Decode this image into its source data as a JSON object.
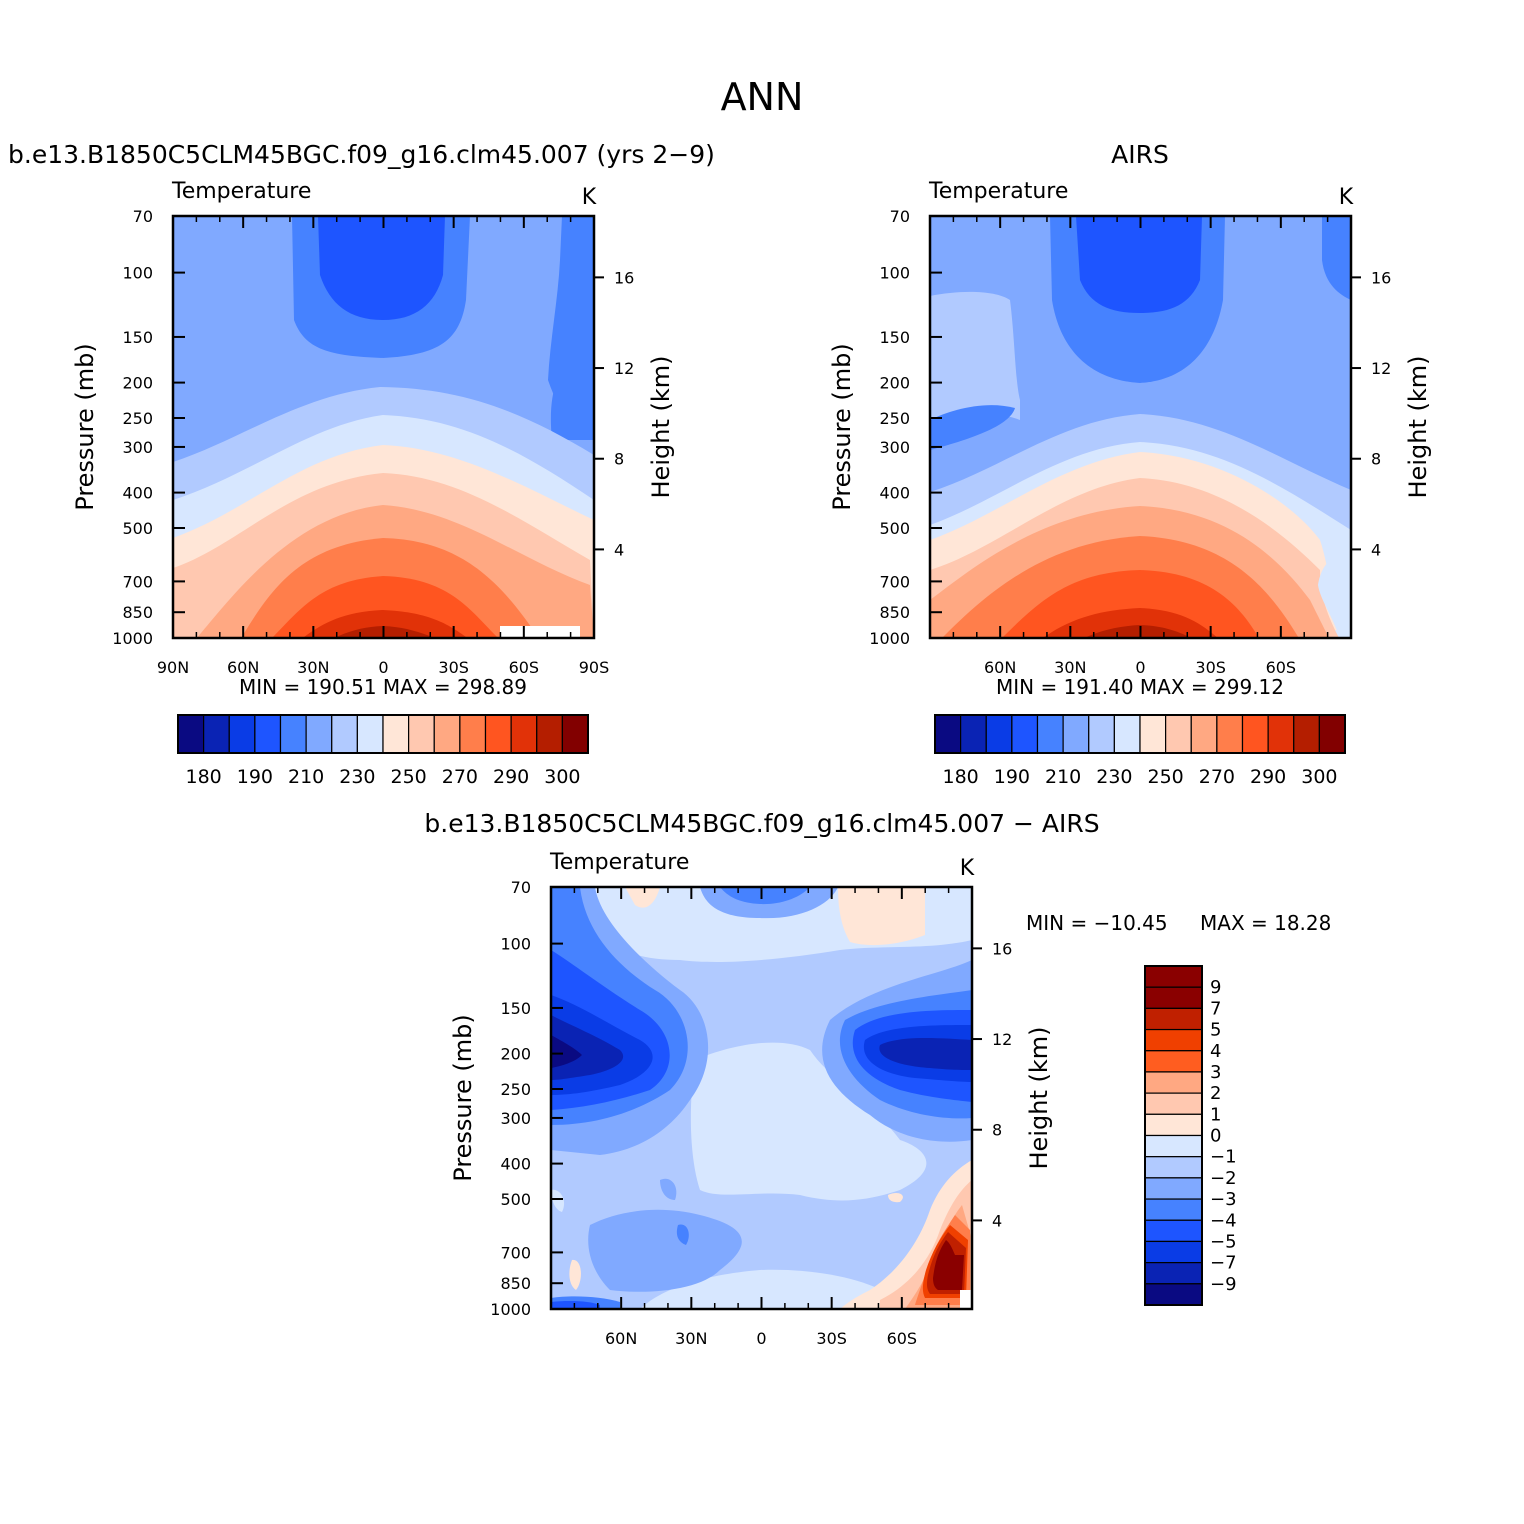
{
  "page": {
    "title": "ANN"
  },
  "chart_data": [
    {
      "type": "heatmap",
      "title": "b.e13.B1850C5CLM45BGC.f09_g16.clm45.007 (yrs 2−9)",
      "variable": "Temperature",
      "units": "K",
      "ylabel": "Pressure (mb)",
      "ylabel_right": "Height (km)",
      "x_ticks": [
        "90N",
        "60N",
        "30N",
        "0",
        "30S",
        "60S",
        "90S"
      ],
      "y_ticks": [
        "70",
        "100",
        "150",
        "200",
        "250",
        "300",
        "400",
        "500",
        "700",
        "850",
        "1000"
      ],
      "height_ticks": [
        "16",
        "12",
        "8",
        "4"
      ],
      "stats": "MIN =  190.51   MAX =  298.89",
      "colorbar_labels": [
        "180",
        "190",
        "210",
        "230",
        "250",
        "270",
        "290",
        "300"
      ]
    },
    {
      "type": "heatmap",
      "title": "AIRS",
      "variable": "Temperature",
      "units": "K",
      "ylabel": "Pressure (mb)",
      "ylabel_right": "Height (km)",
      "x_ticks": [
        "60N",
        "30N",
        "0",
        "30S",
        "60S"
      ],
      "y_ticks": [
        "70",
        "100",
        "150",
        "200",
        "250",
        "300",
        "400",
        "500",
        "700",
        "850",
        "1000"
      ],
      "height_ticks": [
        "16",
        "12",
        "8",
        "4"
      ],
      "stats": "MIN =  191.40   MAX =  299.12",
      "colorbar_labels": [
        "180",
        "190",
        "210",
        "230",
        "250",
        "270",
        "290",
        "300"
      ]
    },
    {
      "type": "heatmap",
      "title": "b.e13.B1850C5CLM45BGC.f09_g16.clm45.007 − AIRS",
      "variable": "Temperature",
      "units": "K",
      "ylabel": "Pressure (mb)",
      "ylabel_right": "Height (km)",
      "x_ticks": [
        "60N",
        "30N",
        "0",
        "30S",
        "60S"
      ],
      "y_ticks": [
        "70",
        "100",
        "150",
        "200",
        "250",
        "300",
        "400",
        "500",
        "700",
        "850",
        "1000"
      ],
      "height_ticks": [
        "16",
        "12",
        "8",
        "4"
      ],
      "stats_min": "MIN = −10.45",
      "stats_max": "MAX =   18.28",
      "colorbar_labels": [
        "9",
        "7",
        "5",
        "4",
        "3",
        "2",
        "1",
        "0",
        "−1",
        "−2",
        "−3",
        "−4",
        "−5",
        "−7",
        "−9"
      ]
    }
  ],
  "colors": {
    "temp_scale": [
      "#0a0a82",
      "#0a23b4",
      "#0a3ce6",
      "#1e55ff",
      "#4682ff",
      "#80a9ff",
      "#b1caff",
      "#d7e7ff",
      "#ffe6d7",
      "#ffc8b0",
      "#ffa882",
      "#ff7e4b",
      "#ff5520",
      "#e13208",
      "#b41e00",
      "#820000"
    ],
    "diff_scale": [
      "#8a0000",
      "#c02000",
      "#f04000",
      "#ff5d20",
      "#ffa882",
      "#ffc8b0",
      "#ffe6d7",
      "#d7e7ff",
      "#b1caff",
      "#80a9ff",
      "#4682ff",
      "#1e55ff",
      "#0a3ce6",
      "#0a23b4",
      "#0a0a82"
    ]
  }
}
